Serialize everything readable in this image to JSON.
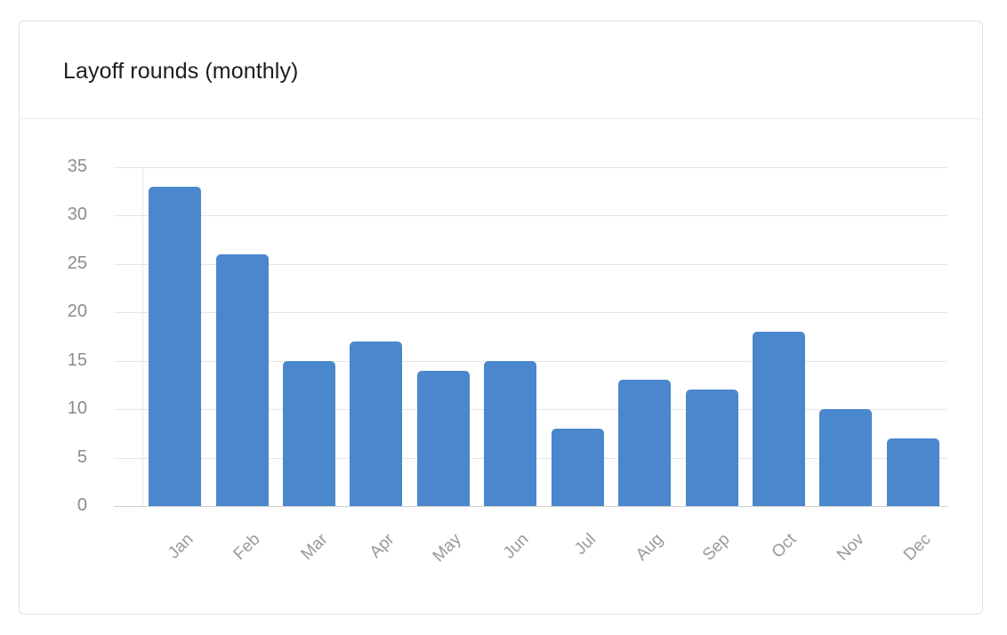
{
  "card": {
    "title": "Layoff rounds (monthly)"
  },
  "colors": {
    "bar": "#4a87cc",
    "grid": "#e6e6e6",
    "tick_text": "#8c8c8c",
    "title_text": "#1d1d1f"
  },
  "chart_data": {
    "type": "bar",
    "title": "Layoff rounds (monthly)",
    "xlabel": "",
    "ylabel": "",
    "categories": [
      "Jan",
      "Feb",
      "Mar",
      "Apr",
      "May",
      "Jun",
      "Jul",
      "Aug",
      "Sep",
      "Oct",
      "Nov",
      "Dec"
    ],
    "values": [
      33,
      26,
      15,
      17,
      14,
      15,
      8,
      13,
      12,
      18,
      10,
      7
    ],
    "ylim": [
      0,
      35
    ],
    "yticks": [
      "0",
      "5",
      "10",
      "15",
      "20",
      "25",
      "30",
      "35"
    ],
    "grid": true,
    "legend": "none",
    "x_label_rotation": -45
  }
}
